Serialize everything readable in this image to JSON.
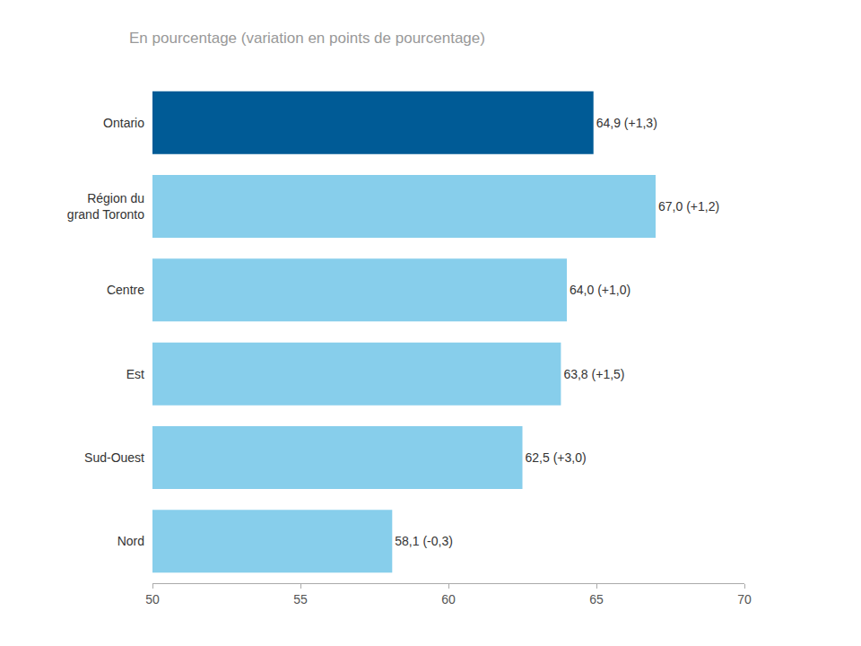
{
  "chart_data": {
    "type": "bar",
    "orientation": "horizontal",
    "title": "En pourcentage (variation en points de pourcentage)",
    "categories": [
      "Nord",
      "Sud-Ouest",
      "Est",
      "Centre",
      "Région du\ngrand Toronto",
      "Ontario"
    ],
    "values": [
      58.1,
      62.5,
      63.8,
      64.0,
      67.0,
      64.9
    ],
    "value_labels": [
      "58,1 (-0,3)",
      "62,5 (+3,0)",
      "63,8 (+1,5)",
      "64,0 (+1,0)",
      "67,0 (+1,2)",
      "64,9 (+1,3)"
    ],
    "colors": [
      "#87CEEB",
      "#87CEEB",
      "#87CEEB",
      "#87CEEB",
      "#87CEEB",
      "#005B96"
    ],
    "xlim": [
      50,
      70
    ],
    "xticks": [
      50,
      55,
      60,
      65,
      70
    ],
    "grid": false
  }
}
